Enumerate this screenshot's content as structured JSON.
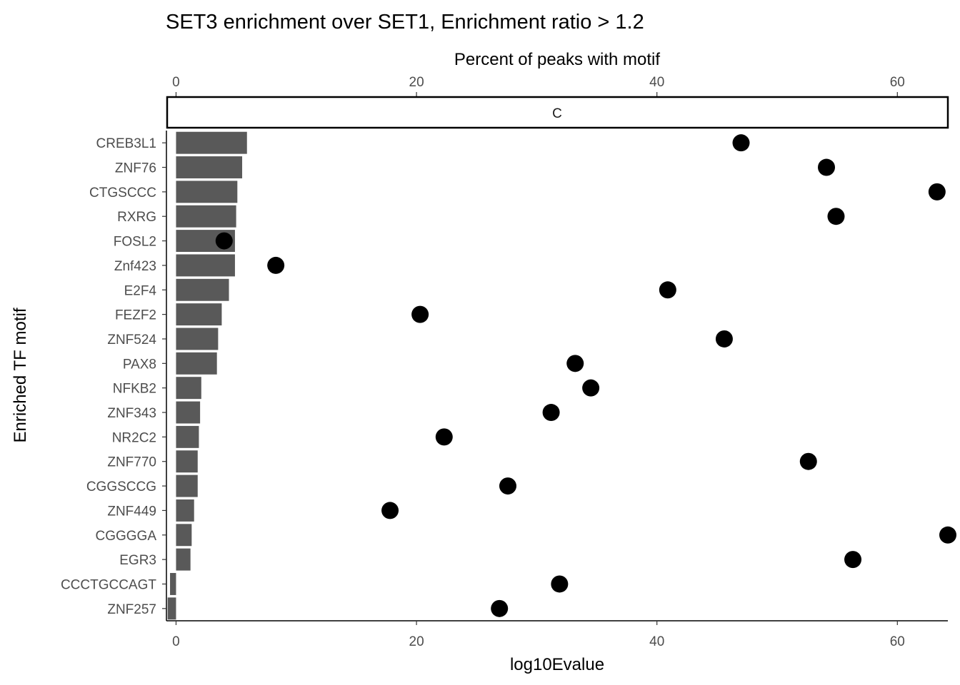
{
  "chart_data": {
    "type": "bar",
    "title": "SET3 enrichment over SET1, Enrichment ratio > 1.2",
    "facet_label": "C",
    "xlabel": "log10Evalue",
    "xlabel_top": "Percent of peaks with motif",
    "ylabel": "Enriched TF motif",
    "xlim": [
      -0.8,
      64.2
    ],
    "xticks": [
      0,
      20,
      40,
      60
    ],
    "xtick_labels": [
      "0",
      "20",
      "40",
      "60"
    ],
    "grid": false,
    "categories": [
      "CREB3L1",
      "ZNF76",
      "CTGSCCC",
      "RXRG",
      "FOSL2",
      "Znf423",
      "E2F4",
      "FEZF2",
      "ZNF524",
      "PAX8",
      "NFKB2",
      "ZNF343",
      "NR2C2",
      "ZNF770",
      "CGGSCCG",
      "ZNF449",
      "CGGGGA",
      "EGR3",
      "CCCTGCCAGT",
      "ZNF257"
    ],
    "series": [
      {
        "mark": "bar",
        "color": "#595959",
        "values": [
          5.9,
          5.5,
          5.1,
          5.0,
          4.9,
          4.9,
          4.4,
          3.8,
          3.5,
          3.4,
          2.1,
          2.0,
          1.9,
          1.8,
          1.8,
          1.5,
          1.3,
          1.2,
          -0.5,
          -0.7
        ]
      },
      {
        "mark": "point",
        "axis": "top",
        "color": "#000000",
        "values": [
          47.0,
          54.1,
          63.3,
          54.9,
          4.0,
          8.3,
          40.9,
          20.3,
          45.6,
          33.2,
          34.5,
          31.2,
          22.3,
          52.6,
          27.6,
          17.8,
          64.2,
          56.3,
          31.9,
          26.9
        ]
      }
    ]
  }
}
